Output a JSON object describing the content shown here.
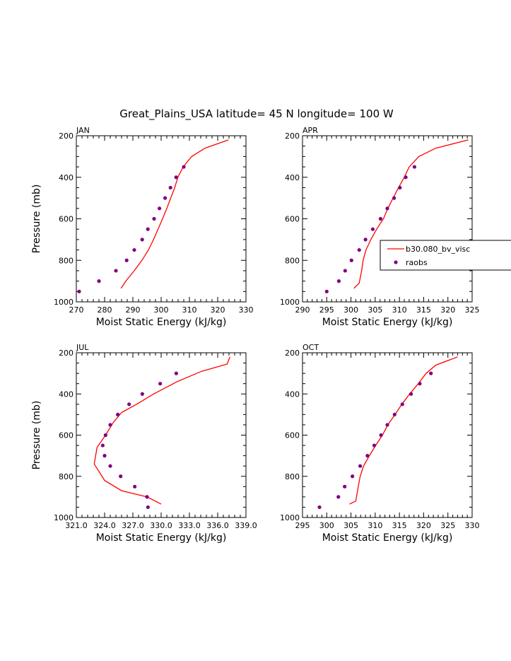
{
  "figure": {
    "title": "Great_Plains_USA  latitude= 45 N longitude= 100 W"
  },
  "colors": {
    "model": "#ff0000",
    "raobs": "#800080",
    "axis": "#000000"
  },
  "legend": {
    "model_label": "b30.080_bv_visc",
    "raobs_label": "raobs",
    "placement": "right, inside APR panel"
  },
  "chart_data": [
    {
      "type": "line",
      "panel": "JAN",
      "xlabel": "Moist Static Energy (kJ/kg)",
      "ylabel": "Pressure (mb)",
      "xlim": [
        270,
        330
      ],
      "ylim": [
        1000,
        200
      ],
      "xticks": [
        270,
        280,
        290,
        300,
        310,
        320,
        330
      ],
      "xtick_labels": [
        "270",
        "280",
        "290",
        "300",
        "310",
        "320",
        "330"
      ],
      "yticks": [
        200,
        400,
        600,
        800,
        1000
      ],
      "ytick_labels": [
        "200",
        "400",
        "600",
        "800",
        "1000"
      ],
      "series": [
        {
          "name": "b30.080_bv_visc",
          "kind": "line",
          "points": [
            [
              285.8,
              935
            ],
            [
              287.5,
              900
            ],
            [
              290.5,
              850
            ],
            [
              293.2,
              800
            ],
            [
              295.5,
              750
            ],
            [
              297.3,
              700
            ],
            [
              298.9,
              650
            ],
            [
              300.5,
              600
            ],
            [
              302,
              550
            ],
            [
              303.4,
              500
            ],
            [
              304.8,
              450
            ],
            [
              305.9,
              400
            ],
            [
              307.8,
              350
            ],
            [
              310.8,
              300
            ],
            [
              315.5,
              260
            ],
            [
              323.8,
              220
            ]
          ]
        },
        {
          "name": "raobs",
          "kind": "scatter",
          "points": [
            [
              271,
              950
            ],
            [
              278,
              900
            ],
            [
              284,
              850
            ],
            [
              287.8,
              800
            ],
            [
              290.5,
              750
            ],
            [
              293.3,
              700
            ],
            [
              295.3,
              650
            ],
            [
              297.5,
              600
            ],
            [
              299.4,
              550
            ],
            [
              301.4,
              500
            ],
            [
              303.3,
              450
            ],
            [
              305.3,
              400
            ],
            [
              308,
              350
            ]
          ]
        }
      ]
    },
    {
      "type": "line",
      "panel": "APR",
      "xlabel": "Moist Static Energy (kJ/kg)",
      "ylabel": "",
      "xlim": [
        290,
        325
      ],
      "ylim": [
        1000,
        200
      ],
      "xticks": [
        290,
        295,
        300,
        305,
        310,
        315,
        320,
        325
      ],
      "xtick_labels": [
        "290",
        "295",
        "300",
        "305",
        "310",
        "315",
        "320",
        "325"
      ],
      "yticks": [
        200,
        400,
        600,
        800,
        1000
      ],
      "ytick_labels": [
        "200",
        "400",
        "600",
        "800",
        "1000"
      ],
      "series": [
        {
          "name": "b30.080_bv_visc",
          "kind": "line",
          "points": [
            [
              300.6,
              935
            ],
            [
              301.7,
              910
            ],
            [
              302.2,
              850
            ],
            [
              302.5,
              800
            ],
            [
              303.1,
              750
            ],
            [
              304.1,
              700
            ],
            [
              305.3,
              650
            ],
            [
              306.7,
              600
            ],
            [
              307.6,
              550
            ],
            [
              308.7,
              500
            ],
            [
              309.8,
              450
            ],
            [
              311,
              400
            ],
            [
              312,
              350
            ],
            [
              314,
              300
            ],
            [
              317.5,
              260
            ],
            [
              324.2,
              220
            ]
          ]
        },
        {
          "name": "raobs",
          "kind": "scatter",
          "points": [
            [
              295,
              950
            ],
            [
              297.5,
              900
            ],
            [
              298.8,
              850
            ],
            [
              300.1,
              800
            ],
            [
              301.7,
              750
            ],
            [
              303,
              700
            ],
            [
              304.5,
              650
            ],
            [
              306.1,
              600
            ],
            [
              307.5,
              550
            ],
            [
              308.9,
              500
            ],
            [
              310.1,
              450
            ],
            [
              311.3,
              400
            ],
            [
              313.1,
              350
            ]
          ]
        }
      ]
    },
    {
      "type": "line",
      "panel": "JUL",
      "xlabel": "Moist Static Energy (kJ/kg)",
      "ylabel": "Pressure (mb)",
      "xlim": [
        321,
        339
      ],
      "ylim": [
        1000,
        200
      ],
      "xticks": [
        321,
        324,
        327,
        330,
        333,
        336,
        339
      ],
      "xtick_labels": [
        "321.0",
        "324.0",
        "327.0",
        "330.0",
        "333.0",
        "336.0",
        "339.0"
      ],
      "yticks": [
        200,
        400,
        600,
        800,
        1000
      ],
      "ytick_labels": [
        "200",
        "400",
        "600",
        "800",
        "1000"
      ],
      "series": [
        {
          "name": "b30.080_bv_visc",
          "kind": "line",
          "points": [
            [
              330,
              935
            ],
            [
              328.5,
              900
            ],
            [
              325.8,
              870
            ],
            [
              324,
              820
            ],
            [
              322.9,
              740
            ],
            [
              323.2,
              660
            ],
            [
              324.1,
              600
            ],
            [
              324.9,
              540
            ],
            [
              325.8,
              490
            ],
            [
              327.4,
              450
            ],
            [
              329.2,
              400
            ],
            [
              331.7,
              340
            ],
            [
              334.3,
              290
            ],
            [
              337,
              255
            ],
            [
              337.3,
              220
            ]
          ]
        },
        {
          "name": "raobs",
          "kind": "scatter",
          "points": [
            [
              328.6,
              950
            ],
            [
              328.5,
              900
            ],
            [
              327.2,
              850
            ],
            [
              325.7,
              800
            ],
            [
              324.6,
              750
            ],
            [
              324,
              700
            ],
            [
              323.8,
              650
            ],
            [
              324.1,
              600
            ],
            [
              324.6,
              550
            ],
            [
              325.4,
              500
            ],
            [
              326.6,
              450
            ],
            [
              328,
              400
            ],
            [
              329.9,
              350
            ],
            [
              331.6,
              300
            ]
          ]
        }
      ]
    },
    {
      "type": "line",
      "panel": "OCT",
      "xlabel": "Moist Static Energy (kJ/kg)",
      "ylabel": "",
      "xlim": [
        295,
        330
      ],
      "ylim": [
        1000,
        200
      ],
      "xticks": [
        295,
        300,
        305,
        310,
        315,
        320,
        325,
        330
      ],
      "xtick_labels": [
        "295",
        "300",
        "305",
        "310",
        "315",
        "320",
        "325",
        "330"
      ],
      "yticks": [
        200,
        400,
        600,
        800,
        1000
      ],
      "ytick_labels": [
        "200",
        "400",
        "600",
        "800",
        "1000"
      ],
      "series": [
        {
          "name": "b30.080_bv_visc",
          "kind": "line",
          "points": [
            [
              304.7,
              935
            ],
            [
              306,
              920
            ],
            [
              306.5,
              850
            ],
            [
              306.9,
              800
            ],
            [
              307.6,
              750
            ],
            [
              308.8,
              700
            ],
            [
              310.1,
              650
            ],
            [
              311.5,
              600
            ],
            [
              312.6,
              550
            ],
            [
              314.1,
              500
            ],
            [
              315.5,
              450
            ],
            [
              317.1,
              400
            ],
            [
              318.9,
              350
            ],
            [
              320.5,
              300
            ],
            [
              322.5,
              260
            ],
            [
              327,
              220
            ]
          ]
        },
        {
          "name": "raobs",
          "kind": "scatter",
          "points": [
            [
              298.5,
              950
            ],
            [
              302.4,
              900
            ],
            [
              303.7,
              850
            ],
            [
              305.3,
              800
            ],
            [
              306.9,
              750
            ],
            [
              308.4,
              700
            ],
            [
              309.8,
              650
            ],
            [
              311.2,
              600
            ],
            [
              312.5,
              550
            ],
            [
              314,
              500
            ],
            [
              315.6,
              450
            ],
            [
              317.4,
              400
            ],
            [
              319.2,
              350
            ],
            [
              321.5,
              300
            ]
          ]
        }
      ]
    }
  ]
}
